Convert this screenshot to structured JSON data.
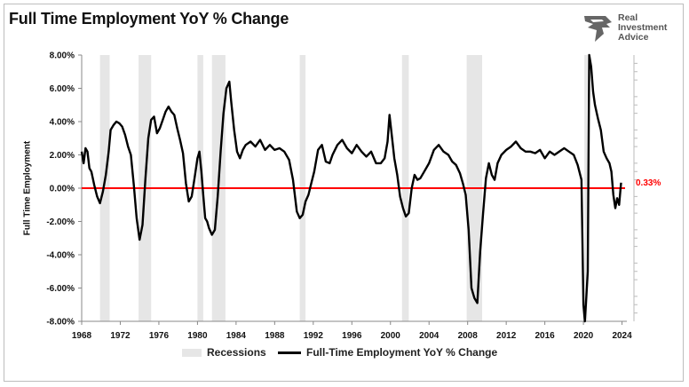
{
  "header": {
    "title": "Full Time Employment YoY % Change"
  },
  "logo": {
    "lines": [
      "Real",
      "Investment",
      "Advice"
    ],
    "icon": "eagle-head-icon",
    "color": "#555555"
  },
  "chart_data": {
    "type": "line",
    "title": "Full Time Employment YoY % Change",
    "xlabel": "",
    "ylabel": "Full Time Employment",
    "xlim": [
      1968,
      2024.5
    ],
    "ylim": [
      -8,
      8
    ],
    "x_ticks": [
      "1968",
      "1972",
      "1976",
      "1980",
      "1984",
      "1988",
      "1992",
      "1996",
      "2000",
      "2004",
      "2008",
      "2012",
      "2016",
      "2020",
      "2024"
    ],
    "y_ticks": [
      "8.00%",
      "6.00%",
      "4.00%",
      "2.00%",
      "0.00%",
      "-2.00%",
      "-4.00%",
      "-6.00%",
      "-8.00%"
    ],
    "grid": false,
    "legend_position": "bottom",
    "annotation": {
      "label": "0.33%",
      "value": 0.33,
      "color": "#ff0000"
    },
    "reference_line": {
      "y": 0,
      "color": "#ff0000"
    },
    "recessions": {
      "name": "Recessions",
      "color": "#e6e6e6",
      "periods": [
        [
          1969.9,
          1970.9
        ],
        [
          1973.9,
          1975.2
        ],
        [
          1980.0,
          1980.6
        ],
        [
          1981.5,
          1982.9
        ],
        [
          1990.6,
          1991.2
        ],
        [
          2001.2,
          2001.9
        ],
        [
          2007.9,
          2009.5
        ],
        [
          2020.1,
          2020.4
        ]
      ]
    },
    "series": [
      {
        "name": "Full-Time Employment YoY % Change",
        "color": "#000000",
        "x": [
          1968.0,
          1968.2,
          1968.4,
          1968.6,
          1968.8,
          1969.0,
          1969.3,
          1969.6,
          1969.9,
          1970.2,
          1970.5,
          1970.8,
          1971.0,
          1971.3,
          1971.6,
          1971.9,
          1972.2,
          1972.5,
          1972.8,
          1973.1,
          1973.4,
          1973.7,
          1974.0,
          1974.3,
          1974.6,
          1974.9,
          1975.2,
          1975.5,
          1975.8,
          1976.1,
          1976.4,
          1976.7,
          1977.0,
          1977.3,
          1977.6,
          1977.9,
          1978.2,
          1978.5,
          1978.8,
          1979.1,
          1979.4,
          1979.7,
          1980.0,
          1980.2,
          1980.4,
          1980.6,
          1980.8,
          1981.0,
          1981.2,
          1981.5,
          1981.8,
          1982.1,
          1982.4,
          1982.7,
          1983.0,
          1983.3,
          1983.5,
          1983.8,
          1984.1,
          1984.4,
          1984.7,
          1985.0,
          1985.5,
          1986.0,
          1986.5,
          1987.0,
          1987.5,
          1988.0,
          1988.5,
          1989.0,
          1989.5,
          1989.9,
          1990.3,
          1990.6,
          1990.9,
          1991.2,
          1991.5,
          1991.8,
          1992.1,
          1992.5,
          1992.9,
          1993.3,
          1993.7,
          1994.0,
          1994.5,
          1995.0,
          1995.5,
          1996.0,
          1996.5,
          1997.0,
          1997.5,
          1998.0,
          1998.5,
          1999.0,
          1999.4,
          1999.7,
          1999.9,
          2000.1,
          2000.4,
          2000.7,
          2001.0,
          2001.3,
          2001.6,
          2001.9,
          2002.2,
          2002.5,
          2002.8,
          2003.1,
          2003.5,
          2004.0,
          2004.5,
          2005.0,
          2005.5,
          2006.0,
          2006.4,
          2006.8,
          2007.2,
          2007.5,
          2007.8,
          2008.1,
          2008.4,
          2008.7,
          2009.0,
          2009.3,
          2009.6,
          2009.9,
          2010.2,
          2010.5,
          2010.8,
          2011.1,
          2011.5,
          2012.0,
          2012.5,
          2013.0,
          2013.5,
          2014.0,
          2014.5,
          2015.0,
          2015.5,
          2016.0,
          2016.5,
          2017.0,
          2017.5,
          2018.0,
          2018.5,
          2019.0,
          2019.4,
          2019.8,
          2020.0,
          2020.15,
          2020.3,
          2020.45,
          2020.6,
          2020.8,
          2021.0,
          2021.2,
          2021.5,
          2021.8,
          2022.1,
          2022.4,
          2022.7,
          2022.9,
          2023.1,
          2023.3,
          2023.5,
          2023.7,
          2023.9
        ],
        "values": [
          2.2,
          1.5,
          2.4,
          2.2,
          1.2,
          1.0,
          0.2,
          -0.5,
          -0.9,
          -0.2,
          0.8,
          2.2,
          3.5,
          3.8,
          4.0,
          3.9,
          3.7,
          3.2,
          2.5,
          2.0,
          0.2,
          -1.8,
          -3.1,
          -2.2,
          0.5,
          3.0,
          4.1,
          4.3,
          3.3,
          3.6,
          4.1,
          4.6,
          4.9,
          4.6,
          4.4,
          3.6,
          2.9,
          2.1,
          0.3,
          -0.8,
          -0.5,
          0.6,
          1.8,
          2.2,
          1.0,
          -0.4,
          -1.8,
          -2.0,
          -2.4,
          -2.8,
          -2.5,
          -0.5,
          2.2,
          4.5,
          6.0,
          6.4,
          5.2,
          3.5,
          2.2,
          1.8,
          2.3,
          2.6,
          2.8,
          2.5,
          2.9,
          2.3,
          2.6,
          2.3,
          2.4,
          2.2,
          1.7,
          0.5,
          -1.4,
          -1.8,
          -1.6,
          -0.8,
          -0.4,
          0.3,
          1.0,
          2.3,
          2.6,
          1.6,
          1.5,
          2.0,
          2.6,
          2.9,
          2.4,
          2.1,
          2.6,
          2.2,
          1.9,
          2.2,
          1.5,
          1.5,
          1.8,
          2.8,
          4.4,
          3.4,
          1.8,
          0.8,
          -0.5,
          -1.2,
          -1.7,
          -1.5,
          0.0,
          0.8,
          0.5,
          0.6,
          1.0,
          1.5,
          2.3,
          2.6,
          2.2,
          2.0,
          1.6,
          1.4,
          0.9,
          0.3,
          -0.4,
          -2.5,
          -6.0,
          -6.6,
          -6.9,
          -3.8,
          -1.5,
          0.6,
          1.5,
          0.8,
          0.5,
          1.5,
          2.0,
          2.3,
          2.5,
          2.8,
          2.4,
          2.2,
          2.2,
          2.1,
          2.3,
          1.8,
          2.2,
          2.0,
          2.2,
          2.4,
          2.2,
          2.0,
          1.4,
          0.5,
          -7.0,
          -8.0,
          -6.5,
          -5.0,
          8.0,
          7.3,
          5.8,
          5.0,
          4.2,
          3.5,
          2.2,
          1.8,
          1.5,
          1.0,
          -0.4,
          -1.2,
          -0.6,
          -1.0,
          0.33
        ]
      }
    ]
  },
  "legend": {
    "recessions_label": "Recessions",
    "series_label": "Full-Time Employment YoY % Change"
  }
}
